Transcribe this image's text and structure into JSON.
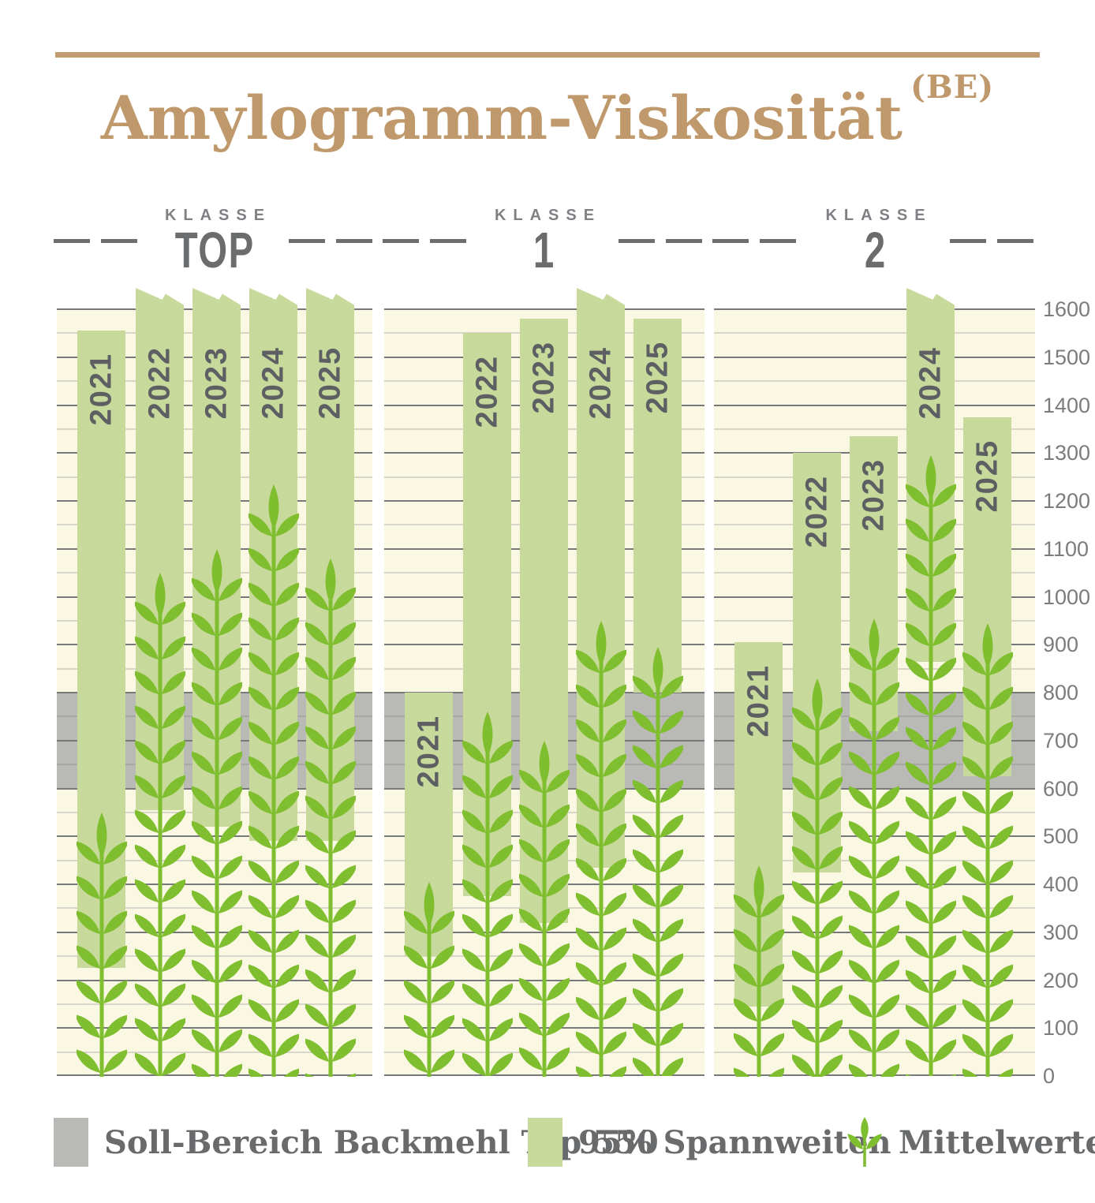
{
  "title": {
    "text": "Amylogramm-Viskosität",
    "sup": "(BE)"
  },
  "colors": {
    "accent_tan": "#c29d72",
    "title_tan": "#bf996b",
    "bar_green": "#c7d99b",
    "wheat_green": "#7fbe2e",
    "band_gray": "#b9b9b6",
    "panel_cream": "#faf8e3",
    "major_grid": "#77787a",
    "minor_grid": "#d7d6c8",
    "band_grid": "#a7a7a4",
    "text_gray": "#6b6c6e"
  },
  "chart_data": {
    "type": "range-bar",
    "title": "Amylogramm-Viskosität",
    "unit": "BE",
    "y_axis": {
      "min": 0,
      "max": 1600,
      "major_step": 100,
      "minor_step": 50,
      "ticks": [
        0,
        100,
        200,
        300,
        400,
        500,
        600,
        700,
        800,
        900,
        1000,
        1100,
        1200,
        1300,
        1400,
        1500,
        1600
      ]
    },
    "target_band": {
      "label": "Soll-Bereich Backmehl Typ 550",
      "from": 600,
      "to": 800
    },
    "groups": [
      {
        "klasse_label": "KLASSE",
        "name": "TOP",
        "years": [
          {
            "year": "2021",
            "low": 225,
            "high": 1555,
            "clipped": false,
            "mean": 550
          },
          {
            "year": "2022",
            "low": 555,
            "high": 1600,
            "clipped": true,
            "mean": 1050
          },
          {
            "year": "2023",
            "low": 520,
            "high": 1600,
            "clipped": true,
            "mean": 1100
          },
          {
            "year": "2024",
            "low": 490,
            "high": 1600,
            "clipped": true,
            "mean": 1235
          },
          {
            "year": "2025",
            "low": 490,
            "high": 1600,
            "clipped": true,
            "mean": 1080
          }
        ]
      },
      {
        "klasse_label": "KLASSE",
        "name": "1",
        "years": [
          {
            "year": "2021",
            "low": 250,
            "high": 800,
            "clipped": false,
            "mean": 405
          },
          {
            "year": "2022",
            "low": 375,
            "high": 1550,
            "clipped": false,
            "mean": 760
          },
          {
            "year": "2023",
            "low": 320,
            "high": 1580,
            "clipped": false,
            "mean": 700
          },
          {
            "year": "2024",
            "low": 435,
            "high": 1600,
            "clipped": true,
            "mean": 950
          },
          {
            "year": "2025",
            "low": 800,
            "high": 1580,
            "clipped": false,
            "mean": 895
          }
        ]
      },
      {
        "klasse_label": "KLASSE",
        "name": "2",
        "years": [
          {
            "year": "2021",
            "low": 145,
            "high": 905,
            "clipped": false,
            "mean": 440
          },
          {
            "year": "2022",
            "low": 425,
            "high": 1300,
            "clipped": false,
            "mean": 830
          },
          {
            "year": "2023",
            "low": 720,
            "high": 1335,
            "clipped": false,
            "mean": 955
          },
          {
            "year": "2024",
            "low": 865,
            "high": 1600,
            "clipped": true,
            "mean": 1295
          },
          {
            "year": "2025",
            "low": 625,
            "high": 1375,
            "clipped": false,
            "mean": 945
          }
        ]
      }
    ]
  },
  "legend": {
    "items": [
      {
        "swatch": "band",
        "label": "Soll-Bereich Backmehl Typ 550"
      },
      {
        "swatch": "bar",
        "label": "95% Spannweiten"
      },
      {
        "swatch": "wheat",
        "label": "Mittelwerte"
      }
    ]
  }
}
